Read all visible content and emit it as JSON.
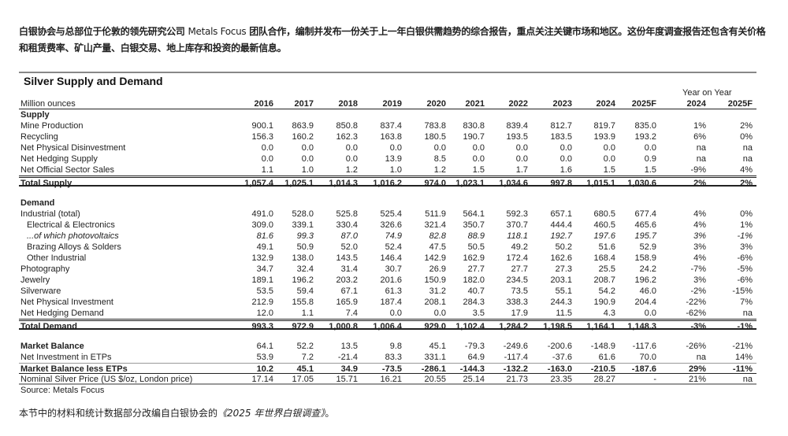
{
  "intro": {
    "part1": "白银协会与总部位于伦敦的领先研究公司",
    "brand": "Metals Focus",
    "part2": "团队合作，编制并发布一份关于上一年白银供需趋势的综合报告，重点关注关键市场和地区。这份年度调查报告还包含有关价格和租赁费率、矿山产量、白银交易、地上库存和投资的最新信息。"
  },
  "table": {
    "title": "Silver Supply and Demand",
    "yoy_label": "Year on Year",
    "unit_label": "Million ounces",
    "columns": [
      "2016",
      "2017",
      "2018",
      "2019",
      "2020",
      "2021",
      "2022",
      "2023",
      "2024",
      "2025F",
      "2024",
      "2025F"
    ],
    "rows": [
      {
        "label": "Supply",
        "style": "b",
        "values": []
      },
      {
        "label": "Mine Production",
        "values": [
          "900.1",
          "863.9",
          "850.8",
          "837.4",
          "783.8",
          "830.8",
          "839.4",
          "812.7",
          "819.7",
          "835.0",
          "1%",
          "2%"
        ]
      },
      {
        "label": "Recycling",
        "values": [
          "156.3",
          "160.2",
          "162.3",
          "163.8",
          "180.5",
          "190.7",
          "193.5",
          "183.5",
          "193.9",
          "193.2",
          "6%",
          "0%"
        ]
      },
      {
        "label": "Net Physical Disinvestment",
        "values": [
          "0.0",
          "0.0",
          "0.0",
          "0.0",
          "0.0",
          "0.0",
          "0.0",
          "0.0",
          "0.0",
          "0.0",
          "na",
          "na"
        ]
      },
      {
        "label": "Net Hedging Supply",
        "values": [
          "0.0",
          "0.0",
          "0.0",
          "13.9",
          "8.5",
          "0.0",
          "0.0",
          "0.0",
          "0.0",
          "0.9",
          "na",
          "na"
        ]
      },
      {
        "label": "Net Official Sector Sales",
        "values": [
          "1.1",
          "1.0",
          "1.2",
          "1.0",
          "1.2",
          "1.5",
          "1.7",
          "1.6",
          "1.5",
          "1.5",
          "-9%",
          "4%"
        ]
      },
      {
        "label": "Total Supply",
        "style": "b dbl-top thick-bot",
        "values": [
          "1,057.4",
          "1,025.1",
          "1,014.3",
          "1,016.2",
          "974.0",
          "1,023.1",
          "1,034.6",
          "997.8",
          "1,015.1",
          "1,030.6",
          "2%",
          "2%"
        ]
      },
      {
        "label": "",
        "values": []
      },
      {
        "label": "Demand",
        "style": "b",
        "values": []
      },
      {
        "label": "Industrial (total)",
        "values": [
          "491.0",
          "528.0",
          "525.8",
          "525.4",
          "511.9",
          "564.1",
          "592.3",
          "657.1",
          "680.5",
          "677.4",
          "4%",
          "0%"
        ]
      },
      {
        "label": "Electrical & Electronics",
        "style": "ind",
        "values": [
          "309.0",
          "339.1",
          "330.4",
          "326.6",
          "321.4",
          "350.7",
          "370.7",
          "444.4",
          "460.5",
          "465.6",
          "4%",
          "1%"
        ]
      },
      {
        "label": "...of which photovoltaics",
        "style": "ind i",
        "values": [
          "81.6",
          "99.3",
          "87.0",
          "74.9",
          "82.8",
          "88.9",
          "118.1",
          "192.7",
          "197.6",
          "195.7",
          "3%",
          "-1%"
        ]
      },
      {
        "label": "Brazing Alloys & Solders",
        "style": "ind",
        "values": [
          "49.1",
          "50.9",
          "52.0",
          "52.4",
          "47.5",
          "50.5",
          "49.2",
          "50.2",
          "51.6",
          "52.9",
          "3%",
          "3%"
        ]
      },
      {
        "label": "Other Industrial",
        "style": "ind",
        "values": [
          "132.9",
          "138.0",
          "143.5",
          "146.4",
          "142.9",
          "162.9",
          "172.4",
          "162.6",
          "168.4",
          "158.9",
          "4%",
          "-6%"
        ]
      },
      {
        "label": "Photography",
        "values": [
          "34.7",
          "32.4",
          "31.4",
          "30.7",
          "26.9",
          "27.7",
          "27.7",
          "27.3",
          "25.5",
          "24.2",
          "-7%",
          "-5%"
        ]
      },
      {
        "label": "Jewelry",
        "values": [
          "189.1",
          "196.2",
          "203.2",
          "201.6",
          "150.9",
          "182.0",
          "234.5",
          "203.1",
          "208.7",
          "196.2",
          "3%",
          "-6%"
        ]
      },
      {
        "label": "Silverware",
        "values": [
          "53.5",
          "59.4",
          "67.1",
          "61.3",
          "31.2",
          "40.7",
          "73.5",
          "55.1",
          "54.2",
          "46.0",
          "-2%",
          "-15%"
        ]
      },
      {
        "label": "Net Physical Investment",
        "values": [
          "212.9",
          "155.8",
          "165.9",
          "187.4",
          "208.1",
          "284.3",
          "338.3",
          "244.3",
          "190.9",
          "204.4",
          "-22%",
          "7%"
        ]
      },
      {
        "label": "Net Hedging Demand",
        "values": [
          "12.0",
          "1.1",
          "7.4",
          "0.0",
          "0.0",
          "3.5",
          "17.9",
          "11.5",
          "4.3",
          "0.0",
          "-62%",
          "na"
        ]
      },
      {
        "label": "Total Demand",
        "style": "b dbl-top thick-bot",
        "values": [
          "993.3",
          "972.9",
          "1,000.8",
          "1,006.4",
          "929.0",
          "1,102.4",
          "1,284.2",
          "1,198.5",
          "1,164.1",
          "1,148.3",
          "-3%",
          "-1%"
        ]
      },
      {
        "label": "",
        "values": []
      },
      {
        "label": "Market Balance",
        "style": "blabel",
        "values": [
          "64.1",
          "52.2",
          "13.5",
          "9.8",
          "45.1",
          "-79.3",
          "-249.6",
          "-200.6",
          "-148.9",
          "-117.6",
          "-26%",
          "-21%"
        ]
      },
      {
        "label": "Net Investment in ETPs",
        "values": [
          "53.9",
          "7.2",
          "-21.4",
          "83.3",
          "331.1",
          "64.9",
          "-117.4",
          "-37.6",
          "61.6",
          "70.0",
          "na",
          "14%"
        ]
      },
      {
        "label": "Market Balance less ETPs",
        "style": "b gray-top dark-bot",
        "values": [
          "10.2",
          "45.1",
          "34.9",
          "-73.5",
          "-286.1",
          "-144.3",
          "-132.2",
          "-163.0",
          "-210.5",
          "-187.6",
          "29%",
          "-11%"
        ]
      },
      {
        "label": "Nominal Silver Price (US $/oz, London price)",
        "style": "gray-bot",
        "values": [
          "17.14",
          "17.05",
          "15.71",
          "16.21",
          "20.55",
          "25.14",
          "21.73",
          "23.35",
          "28.27",
          "-",
          "21%",
          "na"
        ]
      },
      {
        "label": "Source: Metals Focus",
        "values": []
      }
    ]
  },
  "footer": {
    "text": "本节中的材料和统计数据部分改编自白银协会的",
    "title": "《2025 年世界白银调查》",
    "end": "。"
  }
}
